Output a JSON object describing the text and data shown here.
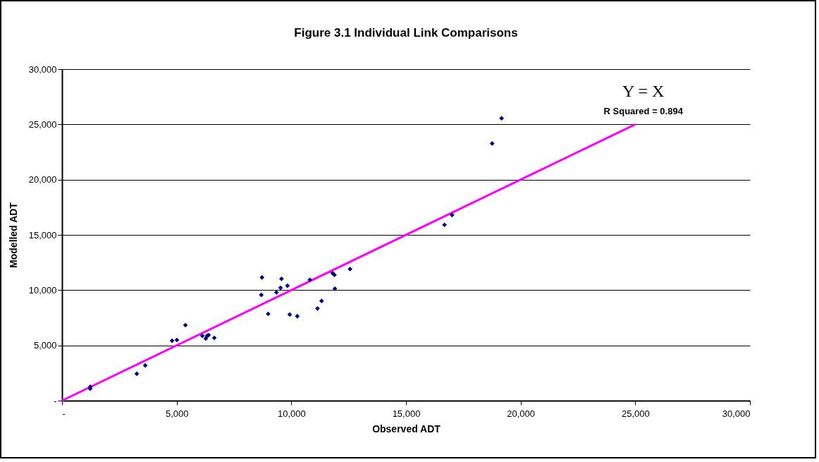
{
  "chart_data": {
    "type": "scatter",
    "title": "Figure 3.1 Individual Link Comparisons",
    "xlabel": "Observed ADT",
    "ylabel": "Modelled ADT",
    "xlim": [
      0,
      30000
    ],
    "ylim": [
      0,
      30000
    ],
    "xticks": [
      {
        "value": 0,
        "label": "-"
      },
      {
        "value": 5000,
        "label": "5,000"
      },
      {
        "value": 10000,
        "label": "10,000"
      },
      {
        "value": 15000,
        "label": "15,000"
      },
      {
        "value": 20000,
        "label": "20,000"
      },
      {
        "value": 25000,
        "label": "25,000"
      },
      {
        "value": 30000,
        "label": "30,000"
      }
    ],
    "yticks": [
      {
        "value": 0,
        "label": "-"
      },
      {
        "value": 5000,
        "label": "5,000"
      },
      {
        "value": 10000,
        "label": "10,000"
      },
      {
        "value": 15000,
        "label": "15,000"
      },
      {
        "value": 20000,
        "label": "20,000"
      },
      {
        "value": 25000,
        "label": "25,000"
      },
      {
        "value": 30000,
        "label": "30,000"
      }
    ],
    "grid": "y",
    "annotations": [
      "Y = X",
      "R Squared = 0.894"
    ],
    "series": [
      {
        "color": "#000080",
        "marker": "diamond",
        "x": [
          1230,
          1230,
          3260,
          3630,
          4800,
          5010,
          5380,
          6120,
          6270,
          6330,
          6390,
          6640,
          8690,
          8720,
          8990,
          9350,
          9530,
          9570,
          9830,
          9930,
          10260,
          10810,
          11140,
          11320,
          11800,
          11880,
          11900,
          12560,
          16680,
          17010,
          18760,
          19170
        ],
        "values": [
          1250,
          1080,
          2430,
          3190,
          5420,
          5490,
          6830,
          5870,
          5620,
          5870,
          5930,
          5680,
          9570,
          11150,
          7850,
          9790,
          10210,
          11020,
          10400,
          7790,
          7640,
          10930,
          8340,
          9020,
          11530,
          11380,
          10130,
          11910,
          15910,
          16800,
          23270,
          25550
        ]
      },
      {
        "type": "line",
        "color": "#ff00ff",
        "line_style": "solid",
        "x": [
          0,
          25000
        ],
        "values": [
          0,
          25000
        ]
      }
    ]
  }
}
